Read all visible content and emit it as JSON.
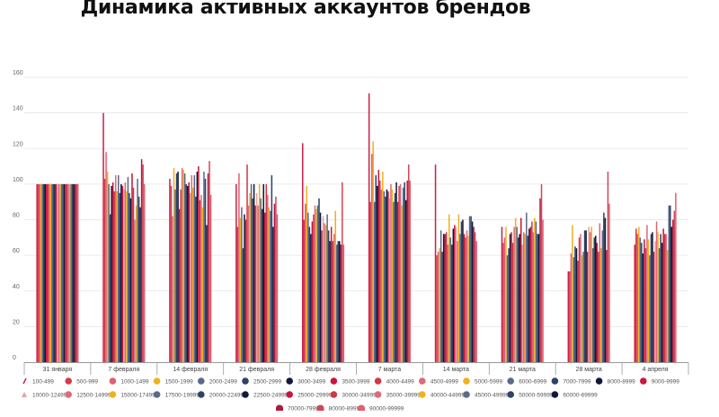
{
  "chart_data": {
    "type": "bar",
    "title": "Динамика активных аккаунтов брендов",
    "xlabel": "",
    "ylabel": "",
    "ylim": [
      0,
      160
    ],
    "yticks": [
      0,
      20,
      40,
      60,
      80,
      100,
      120,
      140,
      160
    ],
    "grid": true,
    "legend_position": "bottom",
    "categories": [
      "31 января",
      "7 февраля",
      "14 февраля",
      "21 февраля",
      "28 февраля",
      "7 марта",
      "14 марта",
      "21 марта",
      "28 марта",
      "4 апреля"
    ],
    "series": [
      {
        "name": "100-499",
        "color": "#c8224a",
        "marker": "slash",
        "values": [
          100,
          140,
          103,
          100,
          123,
          151,
          111,
          76,
          51,
          66
        ]
      },
      {
        "name": "500-999",
        "color": "#d23c4e",
        "values": [
          100,
          103,
          99,
          76,
          80,
          90,
          60,
          67,
          51,
          75
        ]
      },
      {
        "name": "1000-1499",
        "color": "#e06070",
        "values": [
          100,
          118,
          82,
          106,
          89,
          117,
          62,
          70,
          61,
          72
        ]
      },
      {
        "name": "1500-1999",
        "color": "#f0b020",
        "values": [
          100,
          107,
          109,
          81,
          99,
          124,
          64,
          76,
          77,
          76
        ]
      },
      {
        "name": "2000-2499",
        "color": "#5a6a88",
        "values": [
          100,
          100,
          97,
          87,
          84,
          90,
          74,
          60,
          59,
          70
        ]
      },
      {
        "name": "2500-2999",
        "color": "#2c4466",
        "values": [
          100,
          83,
          106,
          64,
          76,
          105,
          62,
          64,
          65,
          67
        ]
      },
      {
        "name": "3000-3499",
        "color": "#0e1a3c",
        "values": [
          100,
          99,
          107,
          83,
          72,
          99,
          72,
          72,
          64,
          61
        ]
      },
      {
        "name": "3500-3999",
        "color": "#c8163c",
        "values": [
          100,
          101,
          86,
          80,
          79,
          108,
          72,
          73,
          57,
          69
        ]
      },
      {
        "name": "4000-4499",
        "color": "#d03848",
        "values": [
          100,
          96,
          97,
          111,
          83,
          102,
          73,
          67,
          70,
          64
        ]
      },
      {
        "name": "4500-4999",
        "color": "#dd6a78",
        "values": [
          100,
          105,
          109,
          88,
          88,
          97,
          66,
          76,
          72,
          77
        ]
      },
      {
        "name": "5000-5999",
        "color": "#f0b020",
        "values": [
          100,
          96,
          108,
          95,
          86,
          107,
          83,
          81,
          60,
          69
        ]
      },
      {
        "name": "6000-6999",
        "color": "#5a6a88",
        "values": [
          100,
          105,
          106,
          100,
          88,
          96,
          70,
          76,
          62,
          60
        ]
      },
      {
        "name": "7000-7999",
        "color": "#2c4466",
        "values": [
          100,
          95,
          100,
          92,
          92,
          93,
          66,
          70,
          74,
          72
        ]
      },
      {
        "name": "8000-8999",
        "color": "#0e1a3c",
        "values": [
          100,
          100,
          99,
          100,
          84,
          97,
          75,
          72,
          74,
          73
        ]
      },
      {
        "name": "9000-9999",
        "color": "#c8163c",
        "values": [
          100,
          99,
          101,
          88,
          74,
          96,
          77,
          81,
          62,
          62
        ]
      },
      {
        "name": "10000-12499",
        "color": "#e8a0a8",
        "marker": "triangle",
        "values": [
          100,
          97,
          95,
          95,
          82,
          92,
          76,
          66,
          76,
          68
        ]
      },
      {
        "name": "12500-14999",
        "color": "#dd6a78",
        "values": [
          100,
          101,
          105,
          88,
          78,
          100,
          68,
          73,
          73,
          79
        ]
      },
      {
        "name": "15000-17499",
        "color": "#f0b020",
        "values": [
          100,
          96,
          98,
          100,
          77,
          97,
          83,
          72,
          76,
          73
        ]
      },
      {
        "name": "17500-19999",
        "color": "#5a6a88",
        "values": [
          100,
          104,
          105,
          92,
          83,
          90,
          72,
          84,
          64,
          64
        ]
      },
      {
        "name": "20000-22499",
        "color": "#2c4466",
        "values": [
          100,
          95,
          93,
          86,
          74,
          95,
          79,
          71,
          70,
          72
        ]
      },
      {
        "name": "22500-24999",
        "color": "#0e1a3c",
        "values": [
          100,
          92,
          107,
          100,
          68,
          101,
          80,
          75,
          71,
          67
        ]
      },
      {
        "name": "25000-29999",
        "color": "#c8163c",
        "values": [
          100,
          106,
          110,
          84,
          76,
          90,
          72,
          76,
          67,
          75
        ]
      },
      {
        "name": "30000-34999",
        "color": "#d03848",
        "values": [
          100,
          98,
          91,
          100,
          68,
          99,
          70,
          79,
          62,
          72
        ]
      },
      {
        "name": "35000-39999",
        "color": "#dd6a78",
        "values": [
          100,
          80,
          94,
          94,
          72,
          100,
          74,
          73,
          78,
          72
        ]
      },
      {
        "name": "40000-44999",
        "color": "#f0b020",
        "values": [
          100,
          88,
          87,
          87,
          85,
          88,
          71,
          81,
          64,
          63
        ]
      },
      {
        "name": "45000-49999",
        "color": "#5a6a88",
        "values": [
          100,
          103,
          107,
          85,
          66,
          98,
          82,
          79,
          74,
          88
        ]
      },
      {
        "name": "50000-59999",
        "color": "#2c4466",
        "values": [
          100,
          93,
          103,
          105,
          68,
          101,
          82,
          72,
          84,
          88
        ]
      },
      {
        "name": "60000-69999",
        "color": "#0e1a3c",
        "values": [
          100,
          87,
          77,
          76,
          68,
          91,
          79,
          72,
          81,
          76
        ]
      },
      {
        "name": "70000-79999",
        "color": "#b01840",
        "marker": "half",
        "values": [
          100,
          114,
          106,
          89,
          66,
          102,
          76,
          92,
          63,
          80
        ]
      },
      {
        "name": "80000-89999",
        "color": "#d04858",
        "marker": "half",
        "values": [
          100,
          111,
          113,
          93,
          101,
          111,
          73,
          100,
          107,
          85
        ]
      },
      {
        "name": "90000-99999",
        "color": "#e06070",
        "marker": "half",
        "values": [
          100,
          100,
          94,
          83,
          66,
          102,
          68,
          80,
          89,
          95
        ]
      }
    ]
  }
}
